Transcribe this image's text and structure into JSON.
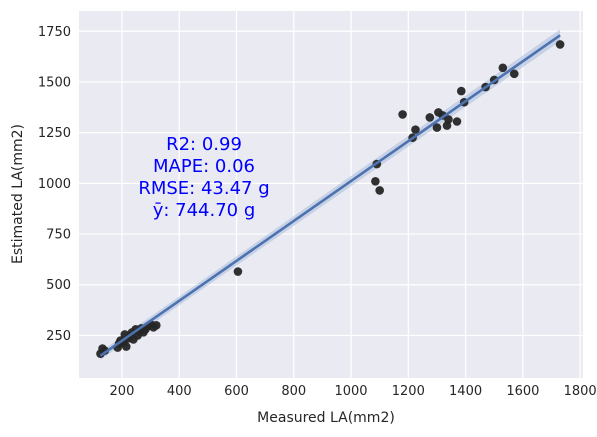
{
  "chart_data": {
    "type": "scatter",
    "xlabel": "Measured LA(mm2)",
    "ylabel": "Estimated LA(mm2)",
    "xlim": [
      50,
      1810
    ],
    "ylim": [
      40,
      1850
    ],
    "x_ticks": [
      200,
      400,
      600,
      800,
      1000,
      1200,
      1400,
      1600,
      1800
    ],
    "y_ticks": [
      250,
      500,
      750,
      1000,
      1250,
      1500,
      1750
    ],
    "grid": true,
    "background": "#eaeaf2",
    "point_color": "#262626",
    "line_color": "#4c72b0",
    "band_color": "#a8bcdc",
    "stat_color": "#0000ff",
    "annotations": [
      "R2: 0.99",
      "MAPE: 0.06",
      "RMSE: 43.47 g",
      "ȳ: 744.70 g"
    ],
    "regression_line": {
      "x": [
        125,
        1730
      ],
      "y": [
        150,
        1730
      ]
    },
    "points": [
      {
        "x": 125,
        "y": 160
      },
      {
        "x": 132,
        "y": 185
      },
      {
        "x": 140,
        "y": 175
      },
      {
        "x": 185,
        "y": 190
      },
      {
        "x": 190,
        "y": 210
      },
      {
        "x": 195,
        "y": 225
      },
      {
        "x": 205,
        "y": 215
      },
      {
        "x": 210,
        "y": 255
      },
      {
        "x": 215,
        "y": 195
      },
      {
        "x": 222,
        "y": 235
      },
      {
        "x": 228,
        "y": 245
      },
      {
        "x": 235,
        "y": 265
      },
      {
        "x": 240,
        "y": 230
      },
      {
        "x": 248,
        "y": 280
      },
      {
        "x": 255,
        "y": 250
      },
      {
        "x": 260,
        "y": 270
      },
      {
        "x": 268,
        "y": 285
      },
      {
        "x": 275,
        "y": 265
      },
      {
        "x": 282,
        "y": 280
      },
      {
        "x": 290,
        "y": 295
      },
      {
        "x": 300,
        "y": 305
      },
      {
        "x": 310,
        "y": 290
      },
      {
        "x": 320,
        "y": 300
      },
      {
        "x": 605,
        "y": 565
      },
      {
        "x": 1085,
        "y": 1010
      },
      {
        "x": 1090,
        "y": 1095
      },
      {
        "x": 1100,
        "y": 965
      },
      {
        "x": 1180,
        "y": 1340
      },
      {
        "x": 1215,
        "y": 1225
      },
      {
        "x": 1225,
        "y": 1265
      },
      {
        "x": 1275,
        "y": 1325
      },
      {
        "x": 1300,
        "y": 1275
      },
      {
        "x": 1305,
        "y": 1350
      },
      {
        "x": 1320,
        "y": 1335
      },
      {
        "x": 1335,
        "y": 1285
      },
      {
        "x": 1340,
        "y": 1315
      },
      {
        "x": 1370,
        "y": 1305
      },
      {
        "x": 1385,
        "y": 1455
      },
      {
        "x": 1395,
        "y": 1400
      },
      {
        "x": 1470,
        "y": 1475
      },
      {
        "x": 1500,
        "y": 1510
      },
      {
        "x": 1530,
        "y": 1570
      },
      {
        "x": 1570,
        "y": 1540
      },
      {
        "x": 1730,
        "y": 1685
      }
    ]
  }
}
